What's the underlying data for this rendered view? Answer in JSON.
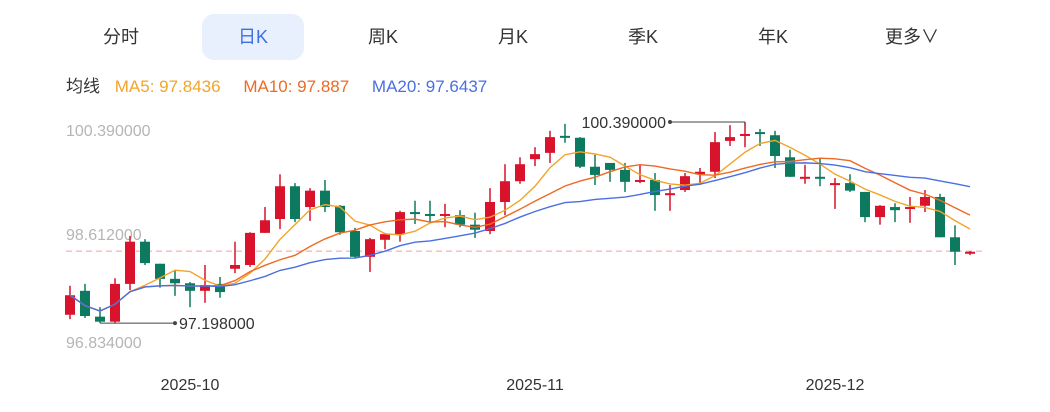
{
  "tabs": [
    {
      "label": "分时"
    },
    {
      "label": "日K",
      "active": true
    },
    {
      "label": "周K"
    },
    {
      "label": "月K"
    },
    {
      "label": "季K"
    },
    {
      "label": "年K"
    },
    {
      "label": "更多∨"
    }
  ],
  "legend": {
    "title": "均线",
    "ma5": "MA5: 97.8436",
    "ma10": "MA10: 97.887",
    "ma20": "MA20: 97.6437"
  },
  "colors": {
    "up": "#d8132b",
    "down": "#0d7a5f",
    "ma5": "#f2a42a",
    "ma10": "#ee6a24",
    "ma20": "#4a6fe2",
    "active_tab": "#3b6fe3"
  },
  "chart_data": {
    "type": "candlestick",
    "ylim": [
      96.834,
      100.39
    ],
    "y_labels": [
      "100.390000",
      "98.612000",
      "96.834000"
    ],
    "x_labels": [
      {
        "label": "2025-10",
        "index": 8
      },
      {
        "label": "2025-11",
        "index": 31
      },
      {
        "label": "2025-12",
        "index": 51
      }
    ],
    "max_marker": {
      "label": "100.390000",
      "value": 100.39,
      "index": 45
    },
    "min_marker": {
      "label": "97.198000",
      "value": 97.198,
      "index": 2
    },
    "last_price": 98.34,
    "ohlc": [
      [
        97.33,
        97.79,
        97.26,
        97.64
      ],
      [
        97.71,
        97.82,
        97.28,
        97.31
      ],
      [
        97.3,
        97.45,
        97.2,
        97.22
      ],
      [
        97.22,
        97.91,
        97.2,
        97.82
      ],
      [
        97.82,
        98.58,
        97.72,
        98.49
      ],
      [
        98.49,
        98.53,
        98.12,
        98.15
      ],
      [
        98.14,
        98.14,
        97.76,
        97.9
      ],
      [
        97.9,
        98.03,
        97.63,
        97.83
      ],
      [
        97.83,
        97.85,
        97.45,
        97.71
      ],
      [
        97.71,
        98.12,
        97.52,
        97.8
      ],
      [
        97.82,
        97.93,
        97.6,
        97.69
      ],
      [
        98.06,
        98.49,
        97.99,
        98.12
      ],
      [
        98.12,
        98.64,
        98.09,
        98.63
      ],
      [
        98.63,
        99.04,
        98.63,
        98.83
      ],
      [
        98.85,
        99.56,
        98.69,
        99.37
      ],
      [
        99.37,
        99.42,
        98.8,
        98.85
      ],
      [
        99.04,
        99.34,
        98.82,
        99.3
      ],
      [
        99.3,
        99.47,
        98.96,
        99.04
      ],
      [
        99.06,
        99.07,
        98.6,
        98.64
      ],
      [
        98.66,
        98.71,
        98.23,
        98.25
      ],
      [
        98.25,
        98.55,
        98.01,
        98.53
      ],
      [
        98.52,
        98.63,
        98.37,
        98.61
      ],
      [
        98.61,
        98.98,
        98.49,
        98.96
      ],
      [
        98.96,
        99.14,
        98.77,
        98.93
      ],
      [
        98.93,
        99.14,
        98.79,
        98.9
      ],
      [
        98.9,
        99.09,
        98.72,
        98.93
      ],
      [
        98.91,
        98.99,
        98.72,
        98.76
      ],
      [
        98.76,
        98.95,
        98.55,
        98.68
      ],
      [
        98.66,
        99.34,
        98.61,
        99.12
      ],
      [
        99.12,
        99.72,
        98.91,
        99.45
      ],
      [
        99.45,
        99.83,
        99.41,
        99.72
      ],
      [
        99.8,
        99.99,
        99.69,
        99.88
      ],
      [
        99.9,
        100.25,
        99.74,
        100.15
      ],
      [
        100.17,
        100.36,
        100.06,
        100.15
      ],
      [
        100.14,
        100.15,
        99.66,
        99.68
      ],
      [
        99.68,
        99.87,
        99.39,
        99.55
      ],
      [
        99.74,
        99.74,
        99.44,
        99.63
      ],
      [
        99.63,
        99.74,
        99.28,
        99.44
      ],
      [
        99.44,
        99.71,
        99.42,
        99.47
      ],
      [
        99.47,
        99.58,
        98.98,
        99.23
      ],
      [
        99.23,
        99.39,
        98.98,
        99.26
      ],
      [
        99.31,
        99.58,
        99.28,
        99.53
      ],
      [
        99.56,
        99.66,
        99.39,
        99.6
      ],
      [
        99.6,
        100.23,
        99.5,
        100.07
      ],
      [
        100.09,
        100.34,
        100.01,
        100.15
      ],
      [
        100.17,
        100.39,
        99.99,
        100.2
      ],
      [
        100.23,
        100.28,
        100.01,
        100.22
      ],
      [
        100.18,
        100.25,
        99.66,
        99.85
      ],
      [
        99.83,
        99.95,
        99.52,
        99.52
      ],
      [
        99.49,
        99.71,
        99.41,
        99.52
      ],
      [
        99.52,
        99.82,
        99.37,
        99.5
      ],
      [
        99.41,
        99.5,
        99.01,
        99.42
      ],
      [
        99.42,
        99.56,
        99.28,
        99.3
      ],
      [
        99.28,
        99.28,
        98.8,
        98.88
      ],
      [
        98.88,
        99.07,
        98.76,
        99.06
      ],
      [
        99.04,
        99.1,
        98.8,
        98.99
      ],
      [
        99.01,
        99.2,
        98.79,
        99.04
      ],
      [
        99.06,
        99.31,
        98.96,
        99.2
      ],
      [
        99.2,
        99.25,
        98.56,
        98.56
      ],
      [
        98.56,
        98.75,
        98.12,
        98.33
      ],
      [
        98.3,
        98.34,
        98.28,
        98.33
      ]
    ]
  }
}
